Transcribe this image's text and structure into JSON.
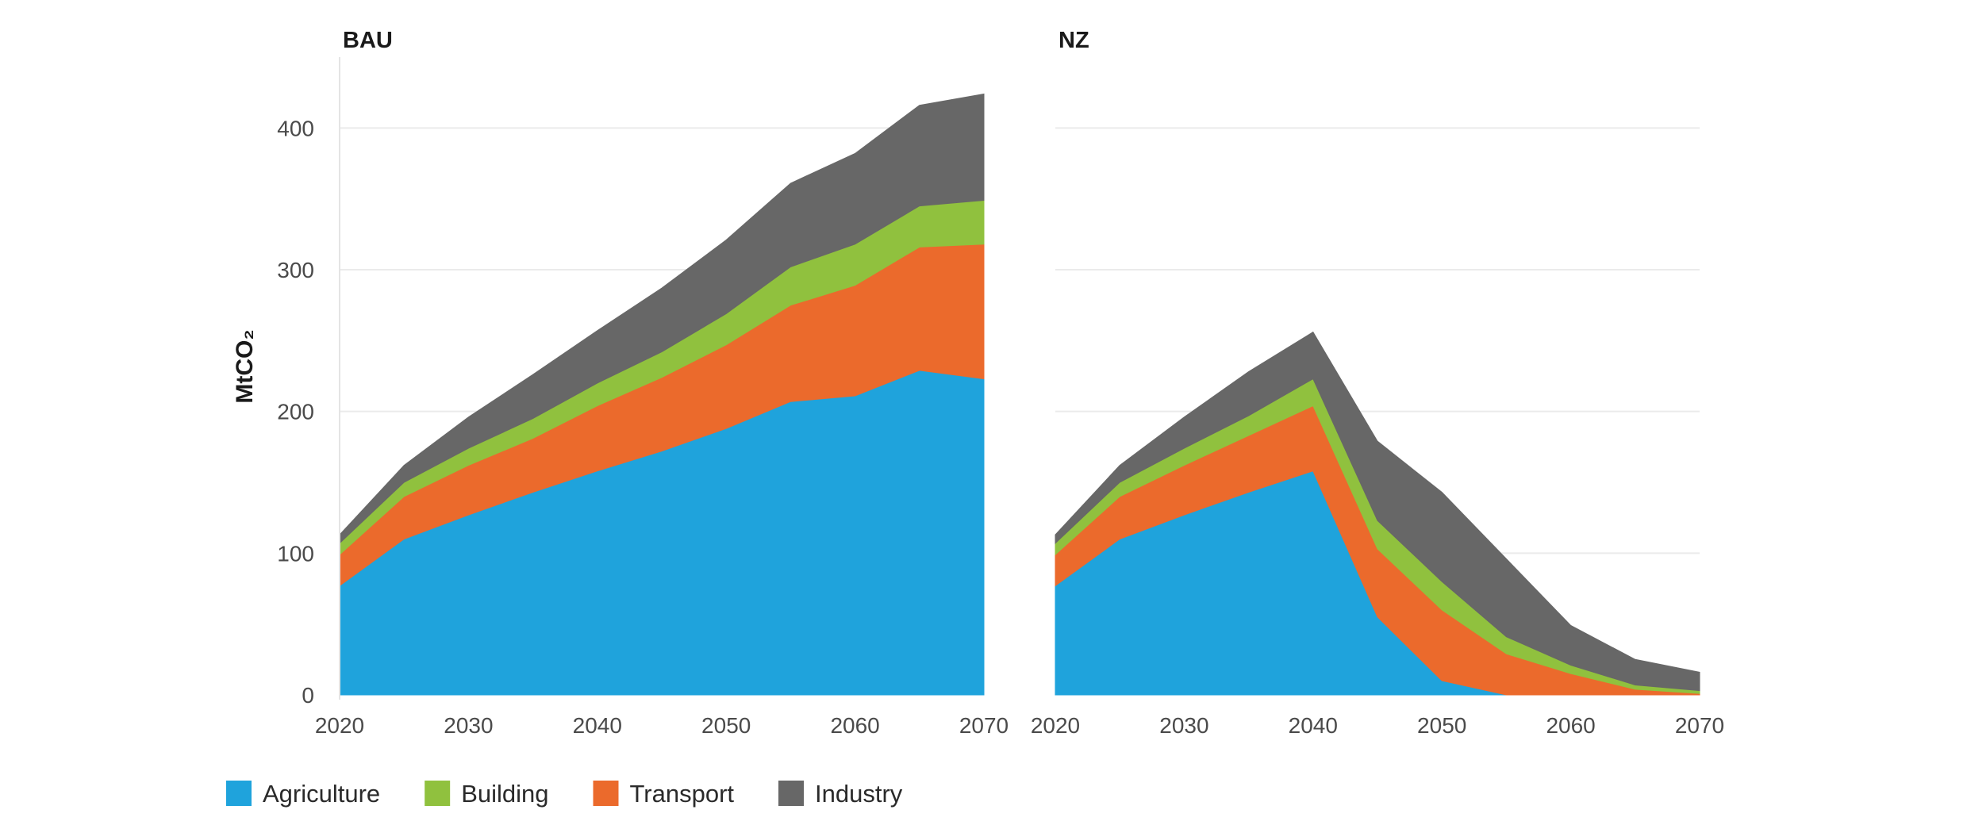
{
  "chart_data": {
    "type": "area",
    "stacked": true,
    "ylabel": "MtCO₂",
    "ylim": [
      0,
      450
    ],
    "yticks": [
      "0",
      "100",
      "200",
      "300",
      "400"
    ],
    "xlim": [
      2020,
      2070
    ],
    "xticks": [
      "2020",
      "2030",
      "2040",
      "2050",
      "2060",
      "2070"
    ],
    "grid": "horizontal",
    "legend": {
      "position": "bottom-left",
      "items": [
        {
          "name": "Agriculture",
          "color": "#1fa3dc"
        },
        {
          "name": "Building",
          "color": "#90c13e"
        },
        {
          "name": "Transport",
          "color": "#eb6a2c"
        },
        {
          "name": "Industry",
          "color": "#676767"
        }
      ]
    },
    "panels": [
      {
        "title": "BAU",
        "x": [
          2020,
          2025,
          2030,
          2035,
          2040,
          2045,
          2050,
          2055,
          2060,
          2065,
          2070
        ],
        "series": [
          {
            "name": "Agriculture",
            "color": "#1fa3dc",
            "values": [
              77,
              110,
              127,
              143,
              158,
              172,
              188,
              207,
              211,
              229,
              223
            ]
          },
          {
            "name": "Transport",
            "color": "#eb6a2c",
            "values": [
              22,
              30,
              35,
              38,
              46,
              52,
              59,
              68,
              78,
              87,
              95
            ]
          },
          {
            "name": "Building",
            "color": "#90c13e",
            "values": [
              8,
              10,
              12,
              14,
              16,
              18,
              22,
              27,
              29,
              29,
              31
            ]
          },
          {
            "name": "Industry",
            "color": "#676767",
            "values": [
              6,
              12,
              22,
              31,
              37,
              45,
              52,
              59,
              64,
              71,
              75
            ]
          }
        ]
      },
      {
        "title": "NZ",
        "x": [
          2020,
          2025,
          2030,
          2035,
          2040,
          2045,
          2050,
          2055,
          2060,
          2065,
          2070
        ],
        "series": [
          {
            "name": "Agriculture",
            "color": "#1fa3dc",
            "values": [
              77,
              110,
              127,
              143,
              158,
              55,
              10,
              0,
              0,
              0,
              0
            ]
          },
          {
            "name": "Transport",
            "color": "#eb6a2c",
            "values": [
              22,
              30,
              35,
              40,
              46,
              48,
              50,
              29,
              15,
              4,
              1
            ]
          },
          {
            "name": "Building",
            "color": "#90c13e",
            "values": [
              8,
              10,
              12,
              14,
              19,
              20,
              20,
              12,
              6,
              3,
              2
            ]
          },
          {
            "name": "Industry",
            "color": "#676767",
            "values": [
              6,
              12,
              22,
              31,
              33,
              56,
              63,
              55,
              28,
              18,
              13
            ]
          }
        ]
      }
    ]
  }
}
